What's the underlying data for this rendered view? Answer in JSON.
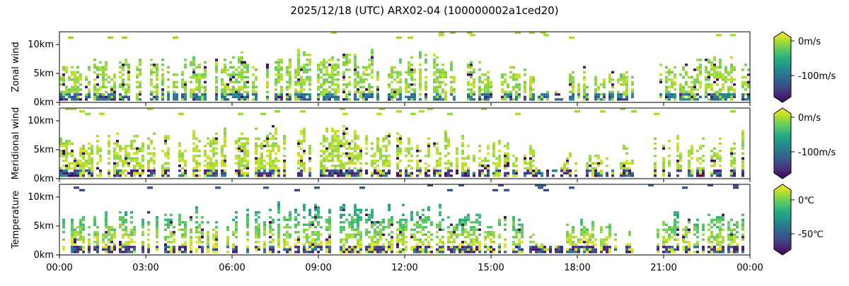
{
  "chart_data": {
    "title": "2025/12/18 (UTC) ARX02-04 (100000002a1ced20)",
    "type": "heatmap",
    "x_ticks": [
      "00:00",
      "03:00",
      "06:00",
      "09:00",
      "12:00",
      "15:00",
      "18:00",
      "21:00",
      "00:00"
    ],
    "x_range_hours": [
      0,
      24
    ],
    "y_range_km": [
      0,
      12
    ],
    "colormap": "viridis",
    "panels": [
      {
        "ylabel": "Zonal wind",
        "y_ticks": [
          "10km",
          "5km",
          "0km"
        ],
        "colorbar": {
          "ticks": [
            "0m/s",
            "-100m/s"
          ],
          "tick_values": [
            0,
            -100
          ],
          "vmin": -150,
          "vmax": 20
        },
        "profile": "zonal"
      },
      {
        "ylabel": "Meridional wind",
        "y_ticks": [
          "10km",
          "5km",
          "0km"
        ],
        "colorbar": {
          "ticks": [
            "0m/s",
            "-100m/s"
          ],
          "tick_values": [
            0,
            -100
          ],
          "vmin": -150,
          "vmax": 20
        },
        "profile": "meridional"
      },
      {
        "ylabel": "Temperature",
        "y_ticks": [
          "10km",
          "5km",
          "0km"
        ],
        "colorbar": {
          "ticks": [
            "0℃",
            "-50℃"
          ],
          "tick_values": [
            0,
            -50
          ],
          "vmin": -75,
          "vmax": 20
        },
        "profile": "temperature"
      }
    ]
  }
}
